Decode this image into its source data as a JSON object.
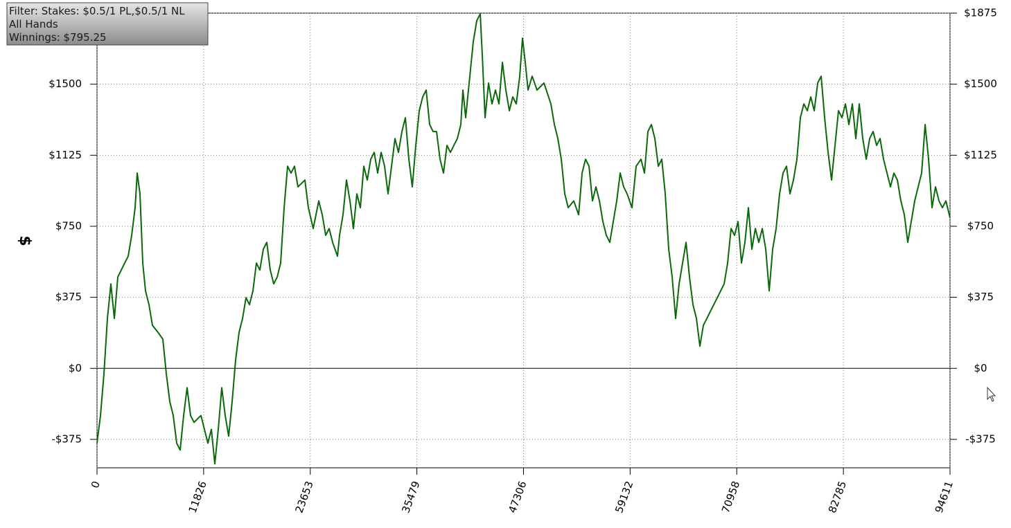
{
  "chart_data": {
    "type": "line",
    "ylabel": "$",
    "annotations": [
      "Filter: Stakes: $0.5/1 PL,$0.5/1 NL",
      "All Hands",
      "Winnings: $795.25"
    ],
    "color": "#0a680a",
    "grid": true,
    "xlim": [
      0,
      94611
    ],
    "xticks": [
      0,
      11826,
      23653,
      35479,
      47306,
      59132,
      70958,
      82785,
      94611
    ],
    "ylim": [
      -525,
      1875
    ],
    "yticks": [
      {
        "value": -375,
        "label": "-$375"
      },
      {
        "value": 0,
        "label": "$0"
      },
      {
        "value": 375,
        "label": "$375"
      },
      {
        "value": 750,
        "label": "$750"
      },
      {
        "value": 1125,
        "label": "$1125"
      },
      {
        "value": 1500,
        "label": "$1500"
      },
      {
        "value": 1875,
        "label": "$1875"
      }
    ],
    "x": [
      0,
      384,
      769,
      1153,
      1537,
      1922,
      2306,
      2690,
      3074,
      3459,
      3843,
      4227,
      4458,
      4765,
      5073,
      5380,
      5765,
      6149,
      6764,
      7302,
      7686,
      8070,
      8455,
      8839,
      9223,
      9608,
      9992,
      10376,
      10760,
      11529,
      12298,
      12682,
      13066,
      13451,
      13835,
      14219,
      14603,
      14988,
      15372,
      15756,
      16141,
      16525,
      16909,
      17294,
      17678,
      18062,
      18446,
      18831,
      19215,
      19599,
      19984,
      20368,
      20752,
      21137,
      21521,
      21905,
      22289,
      23058,
      23442,
      23980,
      24595,
      24980,
      25364,
      25748,
      26132,
      26670,
      26901,
      27285,
      27670,
      28054,
      28438,
      28823,
      29207,
      29591,
      29975,
      30360,
      30744,
      31128,
      31513,
      31897,
      32281,
      32666,
      33050,
      33434,
      33818,
      34203,
      34587,
      34971,
      35356,
      35740,
      36124,
      36509,
      36893,
      37277,
      37661,
      38046,
      38430,
      38814,
      39199,
      39583,
      39967,
      40352,
      40582,
      40890,
      41351,
      41735,
      42119,
      42504,
      42734,
      43042,
      43426,
      43810,
      44195,
      44579,
      44963,
      45347,
      45732,
      46116,
      46500,
      46885,
      47192,
      47499,
      47807,
      48268,
      48806,
      49575,
      50343,
      50728,
      51112,
      51496,
      51881,
      52265,
      52880,
      53418,
      53802,
      54186,
      54571,
      54955,
      55339,
      55724,
      56108,
      56492,
      56876,
      57261,
      57645,
      58029,
      58414,
      58798,
      59336,
      59797,
      60335,
      60719,
      61104,
      61488,
      61872,
      62257,
      62641,
      63025,
      63410,
      63794,
      64178,
      64562,
      64947,
      65331,
      65715,
      66100,
      66484,
      66868,
      67253,
      67637,
      68021,
      68405,
      69174,
      69558,
      69943,
      70327,
      70711,
      71096,
      71480,
      71864,
      72248,
      72633,
      73017,
      73401,
      73786,
      74170,
      74554,
      74939,
      75323,
      75707,
      76091,
      76476,
      76860,
      77244,
      77629,
      78013,
      78397,
      78782,
      79166,
      79550,
      79934,
      80319,
      80703,
      81087,
      81472,
      81856,
      82240,
      82625,
      83009,
      83393,
      83777,
      84162,
      84546,
      84930,
      85315,
      85699,
      86083,
      86468,
      86852,
      87236,
      87620,
      88005,
      88389,
      88773,
      89158,
      89542,
      89926,
      90311,
      90695,
      91079,
      91463,
      91848,
      92232,
      92616,
      93001,
      93385,
      93769,
      94154,
      94611
    ],
    "values": [
      -395,
      -249,
      -29,
      263,
      446,
      263,
      482,
      519,
      556,
      592,
      702,
      848,
      1031,
      921,
      556,
      409,
      336,
      227,
      190,
      154,
      -29,
      -175,
      -249,
      -395,
      -431,
      -249,
      -102,
      -249,
      -285,
      -249,
      -395,
      -322,
      -504,
      -322,
      -102,
      -249,
      -358,
      -175,
      44,
      190,
      263,
      373,
      336,
      409,
      556,
      519,
      629,
      665,
      519,
      446,
      482,
      556,
      848,
      1067,
      1031,
      1067,
      958,
      994,
      848,
      738,
      884,
      811,
      702,
      738,
      665,
      592,
      702,
      811,
      994,
      884,
      738,
      921,
      848,
      1067,
      994,
      1104,
      1140,
      1031,
      1140,
      1067,
      921,
      1067,
      1213,
      1140,
      1250,
      1323,
      1104,
      958,
      1177,
      1360,
      1433,
      1469,
      1287,
      1250,
      1250,
      1104,
      1031,
      1177,
      1140,
      1177,
      1213,
      1287,
      1469,
      1323,
      1542,
      1725,
      1835,
      1871,
      1652,
      1323,
      1506,
      1396,
      1469,
      1396,
      1615,
      1469,
      1360,
      1433,
      1396,
      1542,
      1743,
      1615,
      1469,
      1542,
      1469,
      1506,
      1396,
      1287,
      1213,
      1104,
      921,
      848,
      884,
      811,
      1031,
      1104,
      1067,
      884,
      958,
      884,
      775,
      702,
      665,
      775,
      884,
      1031,
      958,
      921,
      848,
      1067,
      1104,
      1031,
      1250,
      1287,
      1213,
      1067,
      1104,
      921,
      629,
      482,
      263,
      446,
      556,
      665,
      482,
      336,
      263,
      117,
      227,
      263,
      300,
      336,
      409,
      446,
      556,
      738,
      702,
      775,
      556,
      665,
      848,
      629,
      738,
      665,
      738,
      629,
      409,
      629,
      738,
      921,
      1031,
      1067,
      921,
      994,
      1104,
      1323,
      1396,
      1360,
      1433,
      1360,
      1506,
      1542,
      1323,
      1140,
      994,
      1177,
      1360,
      1323,
      1396,
      1287,
      1396,
      1213,
      1396,
      1213,
      1104,
      1213,
      1250,
      1177,
      1213,
      1104,
      1031,
      958,
      1031,
      994,
      884,
      811,
      665,
      775,
      884,
      958,
      1031,
      1287,
      1104,
      848,
      958,
      884,
      848,
      884,
      795
    ]
  }
}
